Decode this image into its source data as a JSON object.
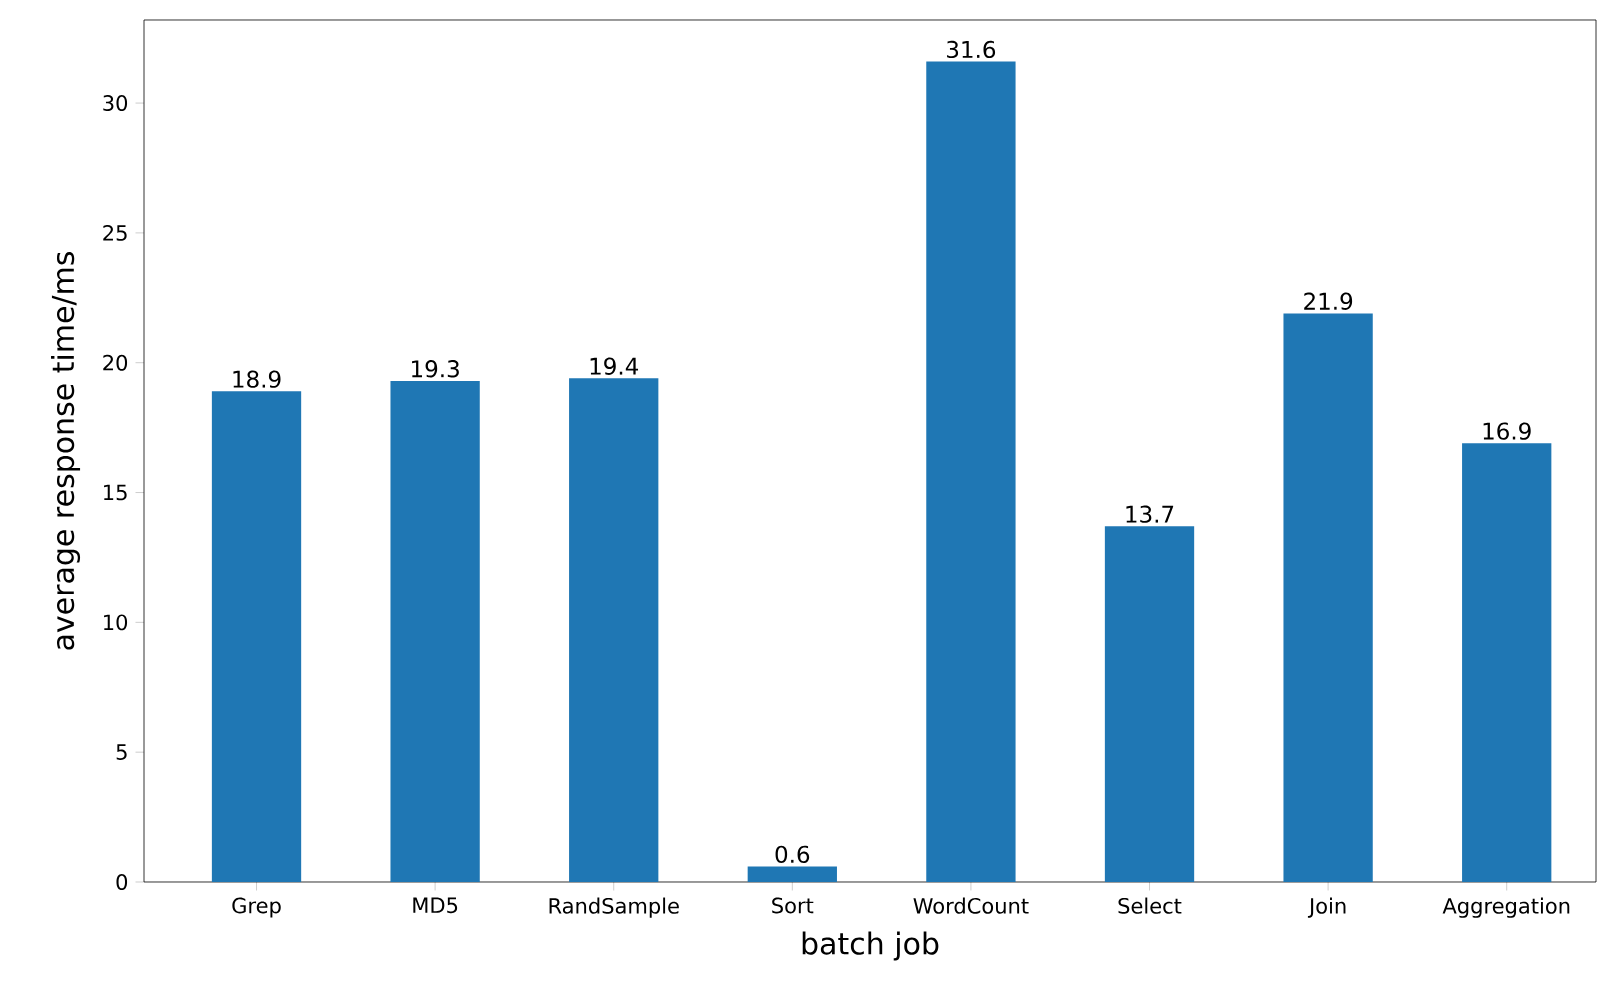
{
  "chart_data": {
    "type": "bar",
    "xlabel": "batch job",
    "ylabel": "average response time/ms",
    "categories": [
      "Grep",
      "MD5",
      "RandSample",
      "Sort",
      "WordCount",
      "Select",
      "Join",
      "Aggregation"
    ],
    "values": [
      18.9,
      19.3,
      19.4,
      0.6,
      31.6,
      13.7,
      21.9,
      16.9
    ],
    "color": "#1f77b4",
    "ylim": [
      0,
      33.2
    ],
    "yticks": [
      0,
      5,
      10,
      15,
      20,
      25,
      30
    ],
    "data_labels": true
  }
}
